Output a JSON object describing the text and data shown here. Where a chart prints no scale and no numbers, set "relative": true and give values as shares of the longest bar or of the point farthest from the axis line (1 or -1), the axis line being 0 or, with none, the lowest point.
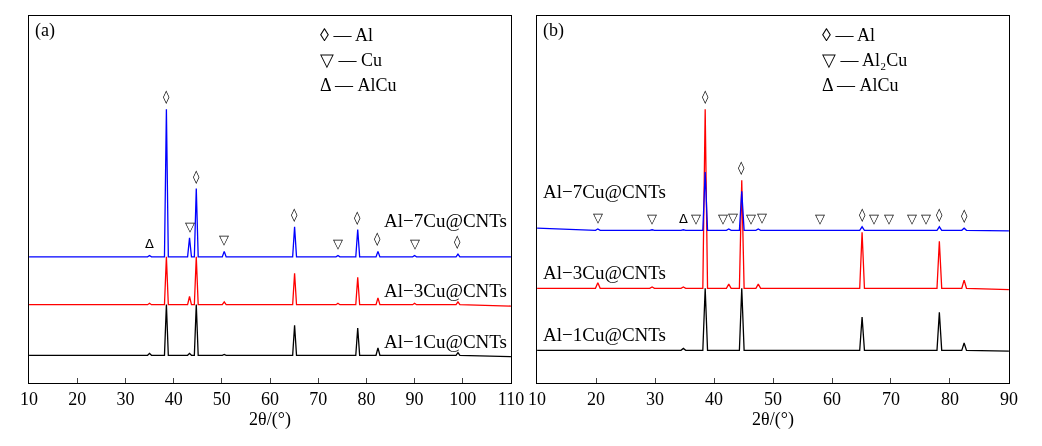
{
  "chart_data": [
    {
      "type": "line",
      "title": "(a)",
      "xlabel": "2θ/(°)",
      "relative": true,
      "legend": false,
      "xlim": [
        10,
        110
      ],
      "xticks": [
        10,
        20,
        30,
        40,
        50,
        60,
        70,
        80,
        90,
        100,
        110
      ],
      "x": [
        10,
        34.6,
        35,
        35.4,
        38.1,
        38.5,
        38.9,
        42.9,
        43.3,
        43.7,
        44.3,
        44.7,
        45.1,
        50.1,
        50.5,
        50.9,
        64.7,
        65.1,
        65.5,
        73.7,
        74.1,
        74.5,
        77.8,
        78.2,
        78.6,
        82,
        82.4,
        82.8,
        89.6,
        90,
        90.4,
        98.6,
        99,
        99.4,
        110
      ],
      "series": [
        {
          "name": "Al−1Cu@CNTs",
          "color": "#000000",
          "values": [
            0.1,
            0.1,
            0.107,
            0.1,
            0.1,
            0.286,
            0.1,
            0.1,
            0.107,
            0.1,
            0.1,
            0.286,
            0.1,
            0.1,
            0.103,
            0.1,
            0.1,
            0.21,
            0.1,
            0.1,
            0.1,
            0.1,
            0.1,
            0.2,
            0.1,
            0.1,
            0.127,
            0.1,
            0.1,
            0.1,
            0.1,
            0.1,
            0.11,
            0.1,
            0.095
          ]
        },
        {
          "name": "Al−3Cu@CNTs",
          "color": "#ff0000",
          "values": [
            0.285,
            0.285,
            0.29,
            0.285,
            0.285,
            0.46,
            0.285,
            0.285,
            0.315,
            0.285,
            0.285,
            0.46,
            0.285,
            0.285,
            0.295,
            0.285,
            0.285,
            0.4,
            0.285,
            0.285,
            0.29,
            0.285,
            0.285,
            0.385,
            0.285,
            0.285,
            0.31,
            0.285,
            0.285,
            0.29,
            0.285,
            0.285,
            0.295,
            0.285,
            0.28
          ]
        },
        {
          "name": "Al−7Cu@CNTs",
          "color": "#0000ff",
          "values": [
            0.46,
            0.46,
            0.465,
            0.46,
            0.46,
            1.0,
            0.46,
            0.46,
            0.53,
            0.46,
            0.46,
            0.71,
            0.46,
            0.46,
            0.48,
            0.46,
            0.46,
            0.57,
            0.46,
            0.46,
            0.465,
            0.46,
            0.46,
            0.56,
            0.46,
            0.46,
            0.48,
            0.46,
            0.46,
            0.465,
            0.46,
            0.46,
            0.47,
            0.46,
            0.46
          ]
        }
      ],
      "annotations": [
        "◊ — Al",
        "▽ — Cu",
        "Δ — AlCu",
        {
          "text": "Δ",
          "x": 35,
          "y": 0.465
        },
        {
          "text": "◊",
          "x": 38.5,
          "y": 1.0
        },
        {
          "text": "▽",
          "x": 43.3,
          "y": 0.53
        },
        {
          "text": "◊",
          "x": 44.7,
          "y": 0.71
        },
        {
          "text": "▽",
          "x": 50.5,
          "y": 0.48
        },
        {
          "text": "◊",
          "x": 65.1,
          "y": 0.57
        },
        {
          "text": "▽",
          "x": 74.1,
          "y": 0.465
        },
        {
          "text": "◊",
          "x": 78.2,
          "y": 0.56
        },
        {
          "text": "◊",
          "x": 82.4,
          "y": 0.48
        },
        {
          "text": "▽",
          "x": 90,
          "y": 0.465
        },
        {
          "text": "◊",
          "x": 99,
          "y": 0.47
        }
      ]
    },
    {
      "type": "line",
      "title": "(b)",
      "xlabel": "2θ/(°)",
      "relative": true,
      "legend": false,
      "xlim": [
        10,
        90
      ],
      "xticks": [
        10,
        20,
        30,
        40,
        50,
        60,
        70,
        80,
        90
      ],
      "x": [
        10,
        19.9,
        20.3,
        20.7,
        29.1,
        29.5,
        29.9,
        34.4,
        34.8,
        35.2,
        38.1,
        38.5,
        38.9,
        42.1,
        42.5,
        42.9,
        44.3,
        44.7,
        45.1,
        47.1,
        47.5,
        47.9,
        64.7,
        65.1,
        65.5,
        77.8,
        78.2,
        78.6,
        82,
        82.4,
        82.8,
        90
      ],
      "series": [
        {
          "name": "Al−1Cu@CNTs",
          "color": "#000000",
          "values": [
            0.118,
            0.118,
            0.118,
            0.118,
            0.118,
            0.118,
            0.118,
            0.118,
            0.125,
            0.118,
            0.118,
            0.345,
            0.118,
            0.118,
            0.118,
            0.118,
            0.118,
            0.345,
            0.118,
            0.118,
            0.118,
            0.118,
            0.118,
            0.24,
            0.118,
            0.118,
            0.257,
            0.118,
            0.118,
            0.145,
            0.118,
            0.115
          ]
        },
        {
          "name": "Al−3Cu@CNTs",
          "color": "#ff0000",
          "values": [
            0.345,
            0.345,
            0.365,
            0.345,
            0.345,
            0.35,
            0.345,
            0.345,
            0.35,
            0.345,
            0.345,
            1.0,
            0.345,
            0.345,
            0.36,
            0.345,
            0.345,
            0.74,
            0.345,
            0.345,
            0.36,
            0.345,
            0.345,
            0.55,
            0.345,
            0.345,
            0.517,
            0.345,
            0.345,
            0.375,
            0.345,
            0.34
          ]
        },
        {
          "name": "Al−7Cu@CNTs",
          "color": "#0000ff",
          "values": [
            0.565,
            0.557,
            0.562,
            0.557,
            0.557,
            0.559,
            0.557,
            0.557,
            0.559,
            0.557,
            0.557,
            0.77,
            0.557,
            0.557,
            0.562,
            0.557,
            0.557,
            0.7,
            0.557,
            0.557,
            0.562,
            0.557,
            0.557,
            0.57,
            0.557,
            0.557,
            0.57,
            0.557,
            0.557,
            0.565,
            0.557,
            0.555
          ]
        }
      ],
      "annotations": [
        "◊ — Al",
        "▽ — Al₂Cu",
        "Δ — AlCu",
        {
          "text": "▽",
          "x": 20.3,
          "y": 0.562
        },
        {
          "text": "▽",
          "x": 29.5,
          "y": 0.559
        },
        {
          "text": "Δ",
          "x": 34.8,
          "y": 0.559
        },
        {
          "text": "▽",
          "x": 36.9,
          "y": 0.557
        },
        {
          "text": "◊",
          "x": 38.5,
          "y": 1.0
        },
        {
          "text": "▽",
          "x": 41.5,
          "y": 0.557
        },
        {
          "text": "▽",
          "x": 43.3,
          "y": 0.562
        },
        {
          "text": "◊",
          "x": 44.7,
          "y": 0.74
        },
        {
          "text": "▽",
          "x": 46.3,
          "y": 0.557
        },
        {
          "text": "▽",
          "x": 48.2,
          "y": 0.562
        },
        {
          "text": "▽",
          "x": 58,
          "y": 0.557
        },
        {
          "text": "◊",
          "x": 65.1,
          "y": 0.57
        },
        {
          "text": "▽",
          "x": 67.2,
          "y": 0.557
        },
        {
          "text": "▽",
          "x": 69.6,
          "y": 0.557
        },
        {
          "text": "▽",
          "x": 73.6,
          "y": 0.557
        },
        {
          "text": "▽",
          "x": 76.0,
          "y": 0.557
        },
        {
          "text": "◊",
          "x": 78.2,
          "y": 0.57
        },
        {
          "text": "◊",
          "x": 82.4,
          "y": 0.565
        }
      ]
    }
  ]
}
